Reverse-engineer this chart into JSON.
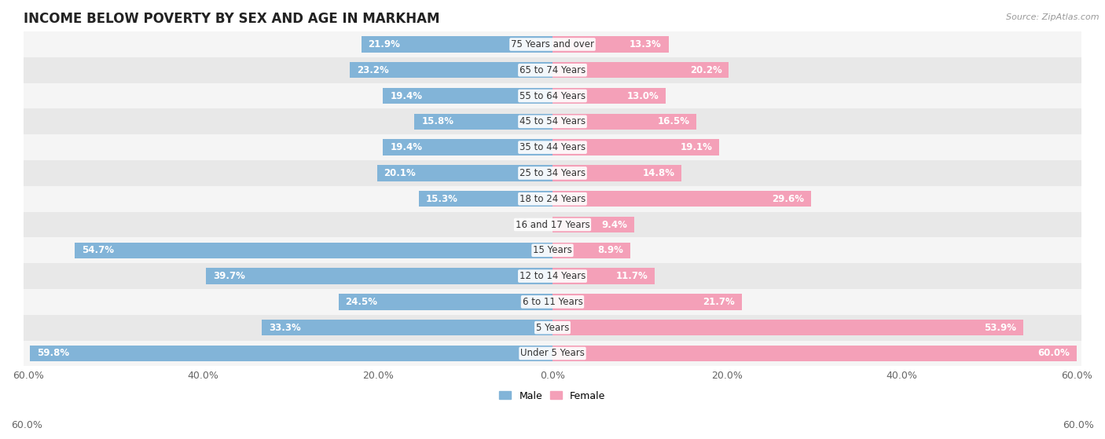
{
  "title": "INCOME BELOW POVERTY BY SEX AND AGE IN MARKHAM",
  "source": "Source: ZipAtlas.com",
  "categories": [
    "Under 5 Years",
    "5 Years",
    "6 to 11 Years",
    "12 to 14 Years",
    "15 Years",
    "16 and 17 Years",
    "18 to 24 Years",
    "25 to 34 Years",
    "35 to 44 Years",
    "45 to 54 Years",
    "55 to 64 Years",
    "65 to 74 Years",
    "75 Years and over"
  ],
  "male": [
    59.8,
    33.3,
    24.5,
    39.7,
    54.7,
    0.0,
    15.3,
    20.1,
    19.4,
    15.8,
    19.4,
    23.2,
    21.9
  ],
  "female": [
    60.0,
    53.9,
    21.7,
    11.7,
    8.9,
    9.4,
    29.6,
    14.8,
    19.1,
    16.5,
    13.0,
    20.2,
    13.3
  ],
  "male_color": "#82b4d8",
  "female_color": "#f4a0b8",
  "male_label": "Male",
  "female_label": "Female",
  "row_colors": [
    "#f5f5f5",
    "#e8e8e8"
  ],
  "max_val": 60.0,
  "bar_height": 0.62,
  "label_fontsize": 8.5,
  "title_fontsize": 12,
  "source_fontsize": 8,
  "legend_fontsize": 9,
  "tick_fontsize": 9,
  "inside_label_color": "white",
  "outside_label_color": "#555555",
  "cat_label_color": "#333333",
  "cat_label_fontsize": 8.5,
  "inside_threshold": 8.0
}
